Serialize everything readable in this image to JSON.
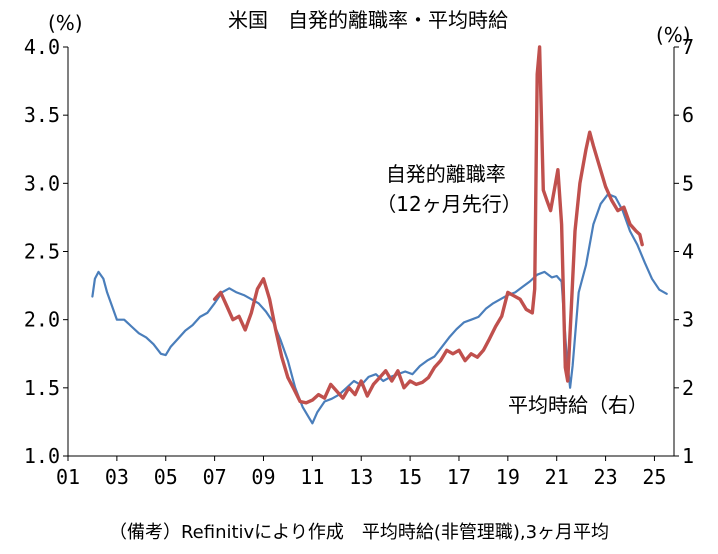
{
  "chart_data": {
    "type": "line",
    "title": "米国　自発的離職率・平均時給",
    "left_axis": {
      "unit": "(%)",
      "ylim": [
        1.0,
        4.0
      ],
      "ticks": [
        "1.0",
        "1.5",
        "2.0",
        "2.5",
        "3.0",
        "3.5",
        "4.0"
      ]
    },
    "right_axis": {
      "unit": "(%)",
      "ylim": [
        1,
        7
      ],
      "ticks": [
        "1",
        "2",
        "3",
        "4",
        "5",
        "6",
        "7"
      ]
    },
    "x_axis": {
      "xlim": [
        2001.0,
        2025.8
      ],
      "ticks": [
        "01",
        "03",
        "05",
        "07",
        "09",
        "11",
        "13",
        "15",
        "17",
        "19",
        "21",
        "23",
        "25"
      ]
    },
    "grid": false,
    "source_note": "（備考）Refinitivにより作成　平均時給(非管理職),3ヶ月平均",
    "series": [
      {
        "name": "自発的離職率（12ヶ月先行）",
        "label_lines": [
          "自発的離職率",
          "（12ヶ月先行）"
        ],
        "axis": "left",
        "color": "#4a7ebb",
        "points": [
          [
            2002.0,
            2.17
          ],
          [
            2002.1,
            2.3
          ],
          [
            2002.25,
            2.35
          ],
          [
            2002.45,
            2.3
          ],
          [
            2002.6,
            2.2
          ],
          [
            2002.8,
            2.1
          ],
          [
            2003.0,
            2.0
          ],
          [
            2003.3,
            2.0
          ],
          [
            2003.6,
            1.95
          ],
          [
            2003.9,
            1.9
          ],
          [
            2004.2,
            1.87
          ],
          [
            2004.5,
            1.82
          ],
          [
            2004.8,
            1.75
          ],
          [
            2005.0,
            1.74
          ],
          [
            2005.2,
            1.8
          ],
          [
            2005.5,
            1.86
          ],
          [
            2005.8,
            1.92
          ],
          [
            2006.1,
            1.96
          ],
          [
            2006.4,
            2.02
          ],
          [
            2006.7,
            2.05
          ],
          [
            2007.0,
            2.12
          ],
          [
            2007.3,
            2.2
          ],
          [
            2007.6,
            2.23
          ],
          [
            2007.9,
            2.2
          ],
          [
            2008.2,
            2.18
          ],
          [
            2008.5,
            2.15
          ],
          [
            2008.8,
            2.12
          ],
          [
            2009.1,
            2.06
          ],
          [
            2009.4,
            1.98
          ],
          [
            2009.7,
            1.85
          ],
          [
            2010.0,
            1.7
          ],
          [
            2010.3,
            1.5
          ],
          [
            2010.6,
            1.36
          ],
          [
            2010.9,
            1.27
          ],
          [
            2011.0,
            1.24
          ],
          [
            2011.2,
            1.32
          ],
          [
            2011.5,
            1.4
          ],
          [
            2011.8,
            1.42
          ],
          [
            2012.1,
            1.45
          ],
          [
            2012.4,
            1.5
          ],
          [
            2012.7,
            1.55
          ],
          [
            2013.0,
            1.52
          ],
          [
            2013.3,
            1.58
          ],
          [
            2013.6,
            1.6
          ],
          [
            2013.9,
            1.55
          ],
          [
            2014.2,
            1.58
          ],
          [
            2014.5,
            1.6
          ],
          [
            2014.8,
            1.62
          ],
          [
            2015.1,
            1.6
          ],
          [
            2015.4,
            1.66
          ],
          [
            2015.7,
            1.7
          ],
          [
            2016.0,
            1.73
          ],
          [
            2016.3,
            1.8
          ],
          [
            2016.6,
            1.87
          ],
          [
            2016.9,
            1.93
          ],
          [
            2017.2,
            1.98
          ],
          [
            2017.5,
            2.0
          ],
          [
            2017.8,
            2.02
          ],
          [
            2018.1,
            2.08
          ],
          [
            2018.4,
            2.12
          ],
          [
            2018.7,
            2.15
          ],
          [
            2019.0,
            2.18
          ],
          [
            2019.3,
            2.2
          ],
          [
            2019.6,
            2.24
          ],
          [
            2019.9,
            2.28
          ],
          [
            2020.2,
            2.33
          ],
          [
            2020.5,
            2.35
          ],
          [
            2020.8,
            2.31
          ],
          [
            2021.0,
            2.32
          ],
          [
            2021.2,
            2.28
          ],
          [
            2021.4,
            1.75
          ],
          [
            2021.55,
            1.5
          ],
          [
            2021.65,
            1.66
          ],
          [
            2021.9,
            2.2
          ],
          [
            2022.2,
            2.4
          ],
          [
            2022.5,
            2.7
          ],
          [
            2022.8,
            2.85
          ],
          [
            2023.1,
            2.92
          ],
          [
            2023.4,
            2.9
          ],
          [
            2023.7,
            2.8
          ],
          [
            2024.0,
            2.65
          ],
          [
            2024.3,
            2.55
          ],
          [
            2024.6,
            2.42
          ],
          [
            2024.9,
            2.3
          ],
          [
            2025.2,
            2.22
          ],
          [
            2025.5,
            2.19
          ]
        ]
      },
      {
        "name": "平均時給（右）",
        "label_lines": [
          "平均時給（右）"
        ],
        "axis": "right",
        "color": "#c0504d",
        "points": [
          [
            2007.0,
            3.3
          ],
          [
            2007.25,
            3.4
          ],
          [
            2007.5,
            3.2
          ],
          [
            2007.75,
            3.0
          ],
          [
            2008.0,
            3.05
          ],
          [
            2008.25,
            2.85
          ],
          [
            2008.5,
            3.1
          ],
          [
            2008.75,
            3.45
          ],
          [
            2009.0,
            3.6
          ],
          [
            2009.25,
            3.3
          ],
          [
            2009.5,
            2.85
          ],
          [
            2009.75,
            2.45
          ],
          [
            2010.0,
            2.15
          ],
          [
            2010.25,
            1.98
          ],
          [
            2010.5,
            1.8
          ],
          [
            2010.75,
            1.78
          ],
          [
            2011.0,
            1.82
          ],
          [
            2011.25,
            1.9
          ],
          [
            2011.5,
            1.85
          ],
          [
            2011.75,
            2.05
          ],
          [
            2012.0,
            1.95
          ],
          [
            2012.25,
            1.85
          ],
          [
            2012.5,
            2.0
          ],
          [
            2012.75,
            1.9
          ],
          [
            2013.0,
            2.1
          ],
          [
            2013.25,
            1.88
          ],
          [
            2013.5,
            2.05
          ],
          [
            2013.75,
            2.15
          ],
          [
            2014.0,
            2.25
          ],
          [
            2014.25,
            2.1
          ],
          [
            2014.5,
            2.25
          ],
          [
            2014.75,
            2.0
          ],
          [
            2015.0,
            2.1
          ],
          [
            2015.25,
            2.05
          ],
          [
            2015.5,
            2.08
          ],
          [
            2015.75,
            2.15
          ],
          [
            2016.0,
            2.3
          ],
          [
            2016.25,
            2.4
          ],
          [
            2016.5,
            2.55
          ],
          [
            2016.75,
            2.5
          ],
          [
            2017.0,
            2.55
          ],
          [
            2017.25,
            2.4
          ],
          [
            2017.5,
            2.5
          ],
          [
            2017.75,
            2.45
          ],
          [
            2018.0,
            2.55
          ],
          [
            2018.25,
            2.72
          ],
          [
            2018.5,
            2.9
          ],
          [
            2018.75,
            3.05
          ],
          [
            2019.0,
            3.4
          ],
          [
            2019.25,
            3.35
          ],
          [
            2019.5,
            3.3
          ],
          [
            2019.75,
            3.15
          ],
          [
            2020.0,
            3.1
          ],
          [
            2020.1,
            3.45
          ],
          [
            2020.2,
            6.6
          ],
          [
            2020.3,
            7.0
          ],
          [
            2020.45,
            4.9
          ],
          [
            2020.6,
            4.75
          ],
          [
            2020.75,
            4.6
          ],
          [
            2020.95,
            5.0
          ],
          [
            2021.05,
            5.2
          ],
          [
            2021.2,
            4.4
          ],
          [
            2021.35,
            2.3
          ],
          [
            2021.45,
            2.1
          ],
          [
            2021.6,
            3.2
          ],
          [
            2021.75,
            4.3
          ],
          [
            2021.95,
            5.0
          ],
          [
            2022.2,
            5.5
          ],
          [
            2022.35,
            5.75
          ],
          [
            2022.5,
            5.55
          ],
          [
            2022.75,
            5.25
          ],
          [
            2023.0,
            4.95
          ],
          [
            2023.25,
            4.75
          ],
          [
            2023.5,
            4.6
          ],
          [
            2023.75,
            4.65
          ],
          [
            2024.0,
            4.4
          ],
          [
            2024.25,
            4.3
          ],
          [
            2024.4,
            4.25
          ],
          [
            2024.5,
            4.1
          ]
        ]
      }
    ]
  }
}
